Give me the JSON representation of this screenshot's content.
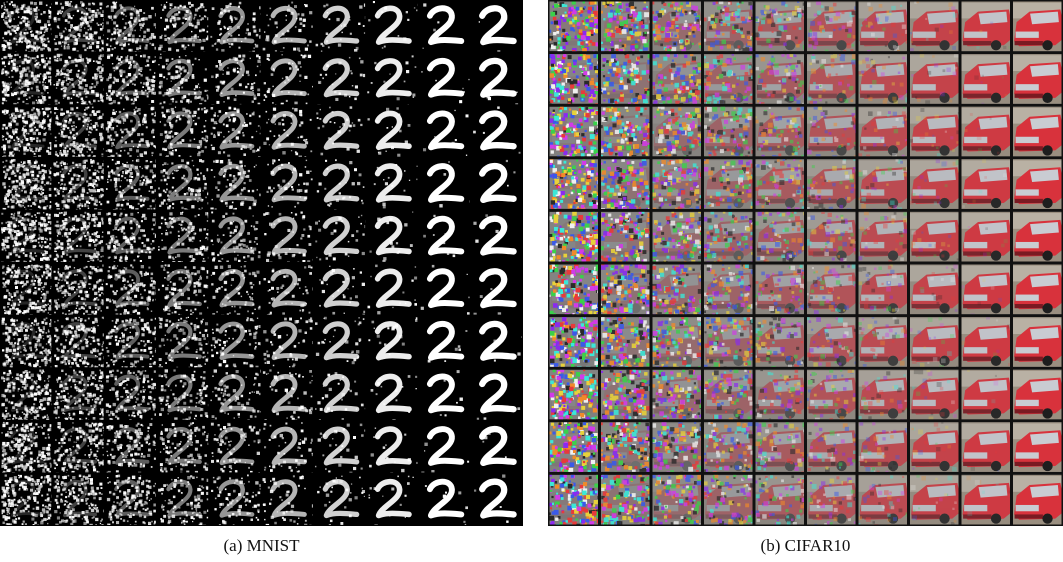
{
  "figure": {
    "panels": [
      {
        "id": "a",
        "caption": "(a) MNIST",
        "rows": 10,
        "cols": 10,
        "background": "#000000",
        "grid_line": "#000000"
      },
      {
        "id": "b",
        "caption": "(b) CIFAR10",
        "rows": 10,
        "cols": 10,
        "background": "#111111",
        "grid_line": "#111111"
      }
    ],
    "colors": {
      "mnist_ink": "#ffffff",
      "car_body": "#d8323c",
      "car_dark": "#7a1a22",
      "car_window": "#c9ccd2",
      "road": "#9a8f80"
    }
  }
}
